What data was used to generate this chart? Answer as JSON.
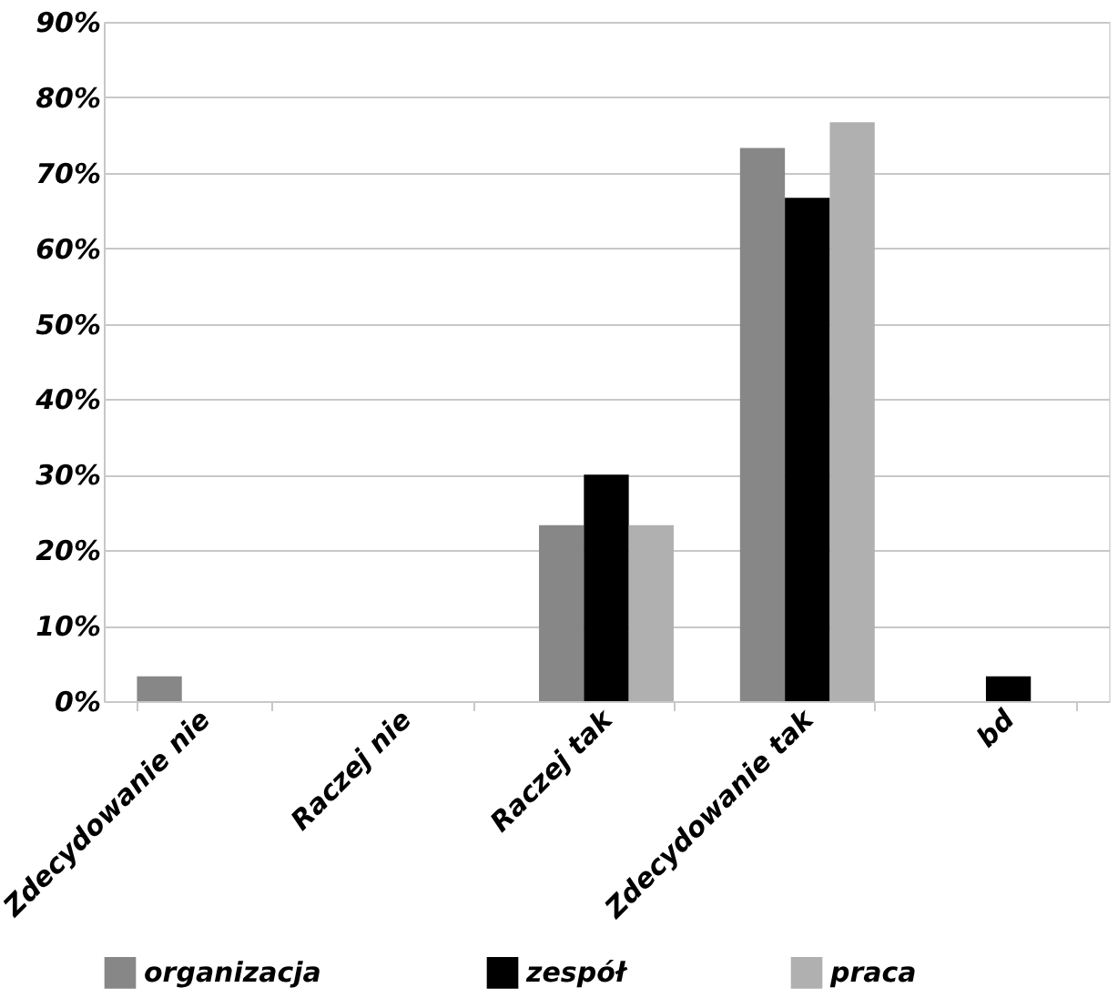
{
  "chart_data": {
    "type": "bar",
    "categories": [
      "Zdecydowanie nie",
      "Raczej nie",
      "Raczej tak",
      "Zdecydowanie tak",
      "bd"
    ],
    "series": [
      {
        "name": "organizacja",
        "color": "#878787",
        "values": [
          3.3,
          0,
          23.3,
          73.3,
          0
        ]
      },
      {
        "name": "zespół",
        "color": "#000000",
        "values": [
          0,
          0,
          30,
          66.7,
          3.3
        ]
      },
      {
        "name": "praca",
        "color": "#b0b0b0",
        "values": [
          0,
          0,
          23.3,
          76.7,
          0
        ]
      }
    ],
    "ylim": [
      0,
      90
    ],
    "yticks": [
      {
        "value": 0,
        "label": "0%"
      },
      {
        "value": 10,
        "label": "10%"
      },
      {
        "value": 20,
        "label": "20%"
      },
      {
        "value": 30,
        "label": "30%"
      },
      {
        "value": 40,
        "label": "40%"
      },
      {
        "value": 50,
        "label": "50%"
      },
      {
        "value": 60,
        "label": "60%"
      },
      {
        "value": 70,
        "label": "70%"
      },
      {
        "value": 80,
        "label": "80%"
      },
      {
        "value": 90,
        "label": "90%"
      }
    ],
    "grid": "y",
    "legend": "bottom"
  }
}
